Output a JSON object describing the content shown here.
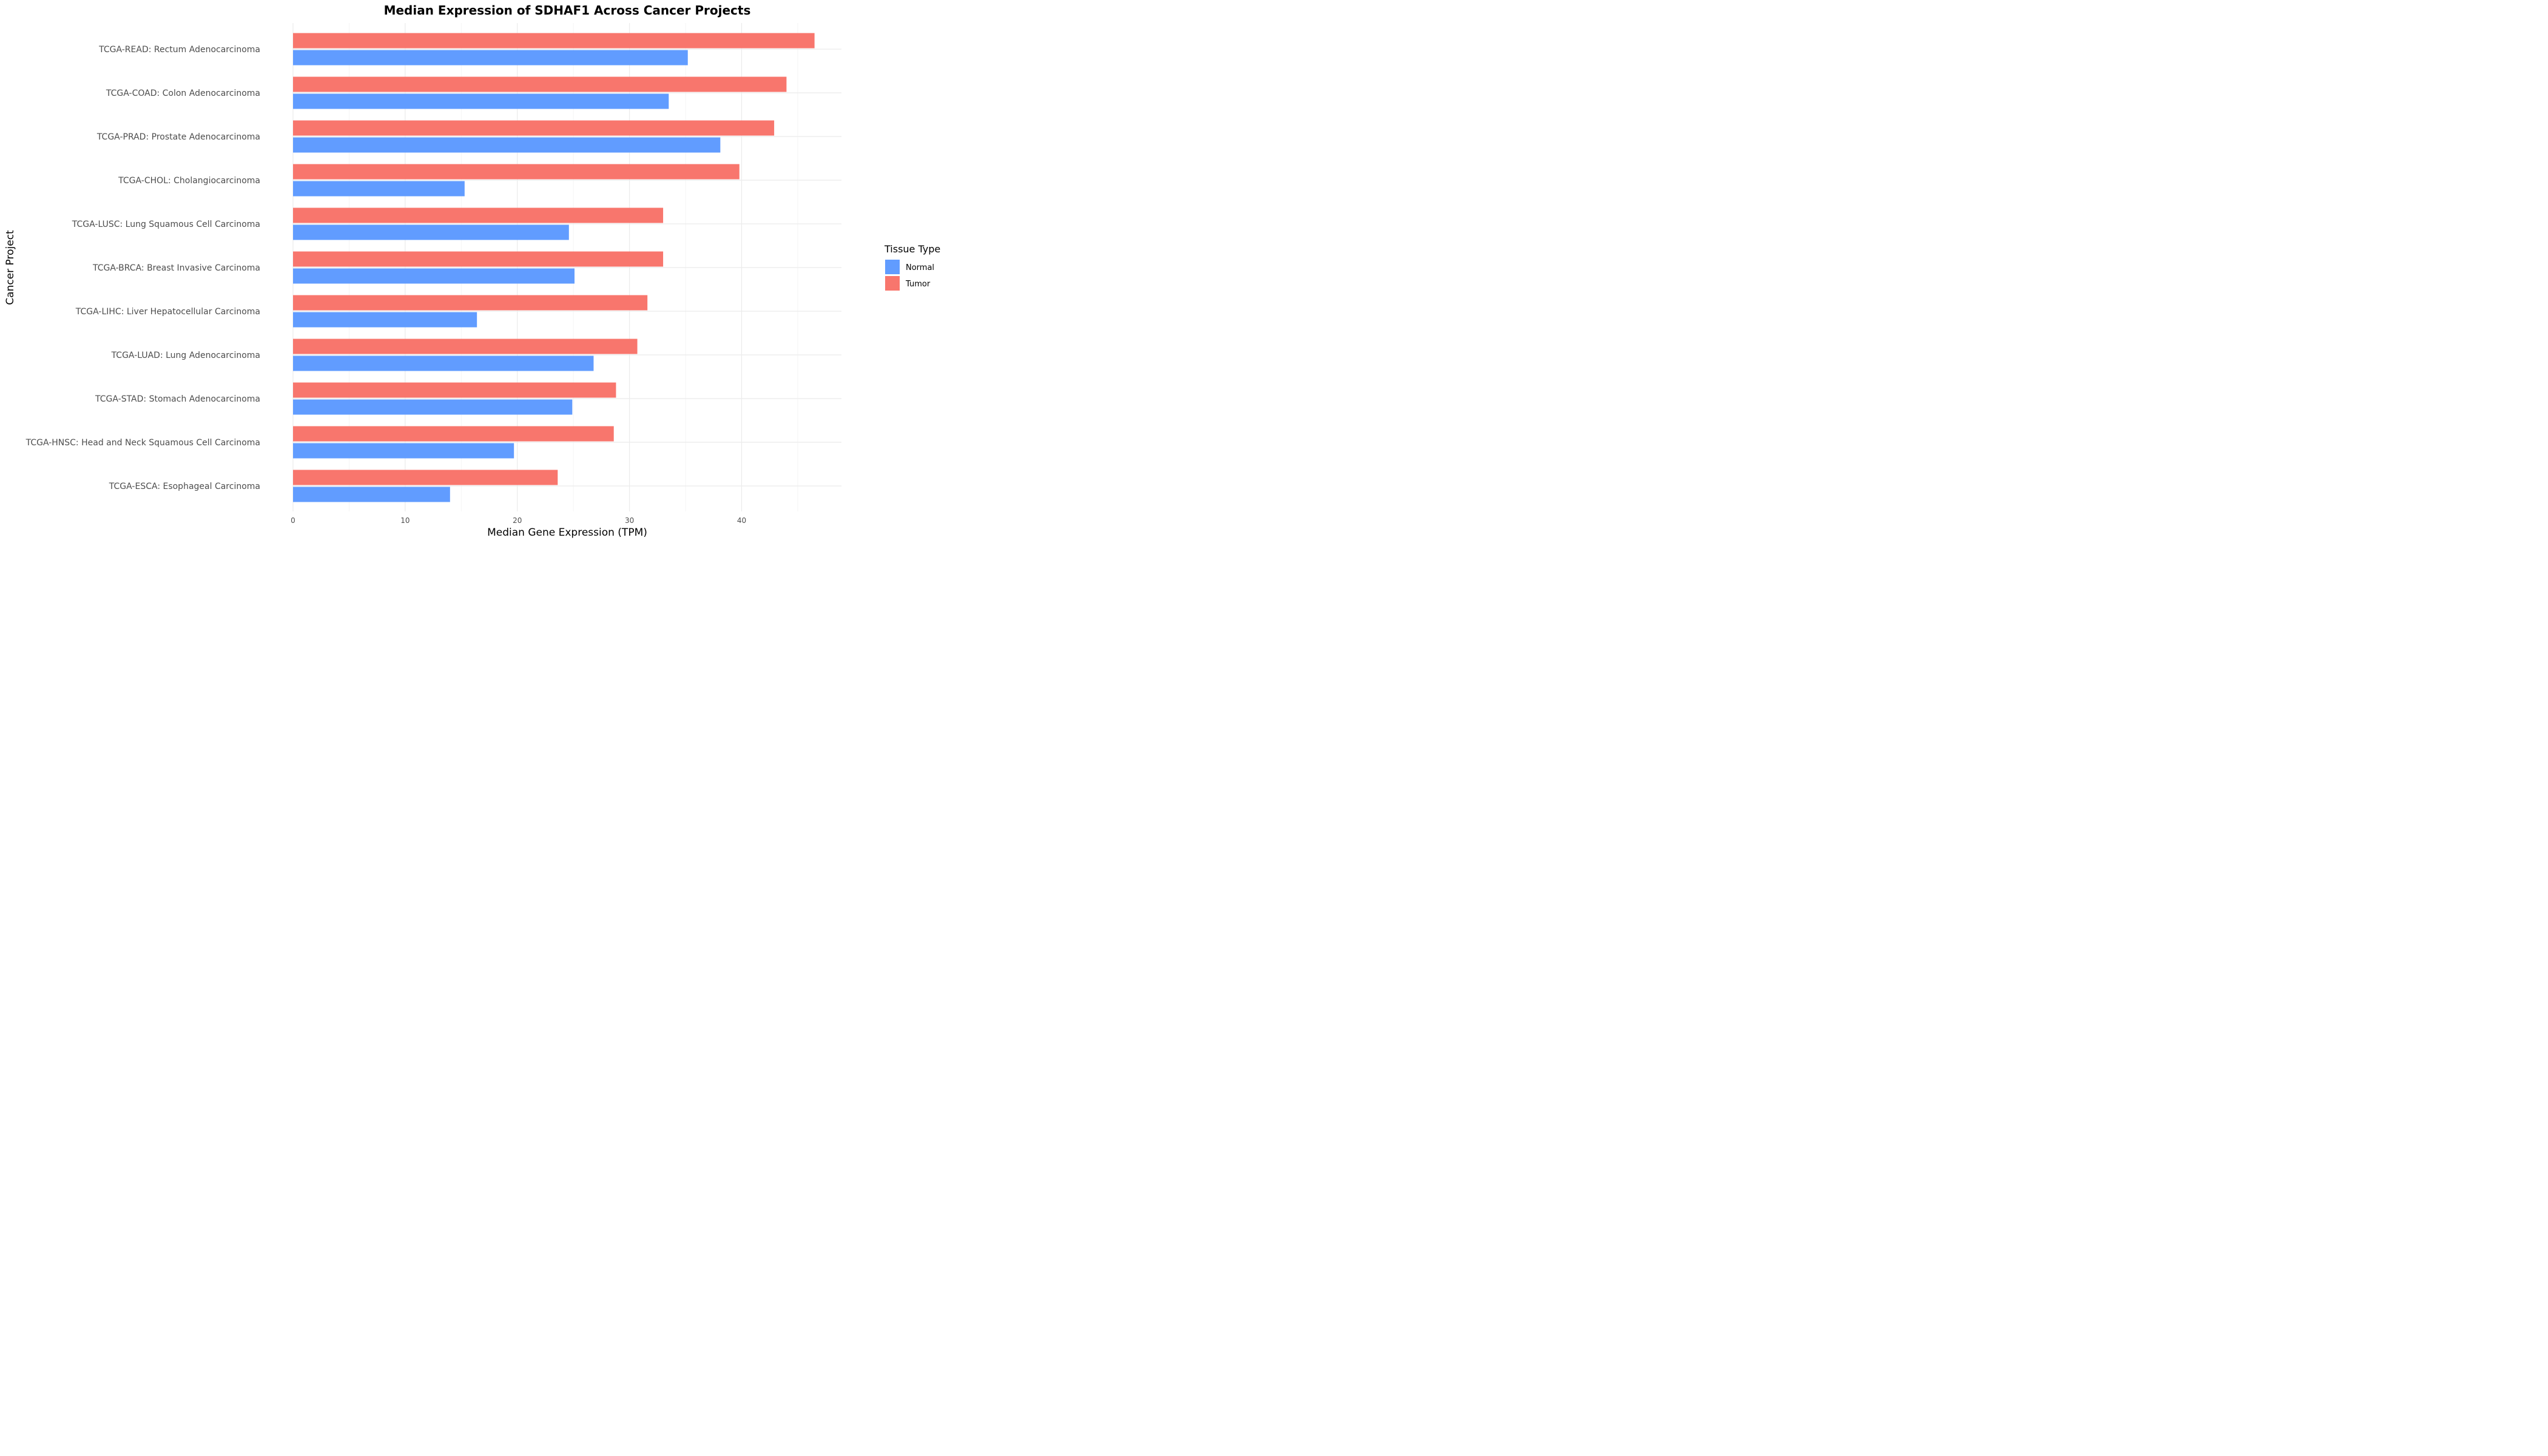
{
  "chart_data": {
    "type": "bar",
    "orientation": "horizontal",
    "title": "Median Expression of SDHAF1 Across Cancer Projects",
    "xlabel": "Median Gene Expression (TPM)",
    "ylabel": "Cancer Project",
    "xlim": [
      0,
      48.9
    ],
    "xticks": [
      0,
      10,
      20,
      30,
      40
    ],
    "grid": true,
    "legend": {
      "title": "Tissue Type",
      "position": "right",
      "entries": [
        "Normal",
        "Tumor"
      ]
    },
    "categories": [
      "TCGA-READ: Rectum Adenocarcinoma",
      "TCGA-COAD: Colon Adenocarcinoma",
      "TCGA-PRAD: Prostate Adenocarcinoma",
      "TCGA-CHOL: Cholangiocarcinoma",
      "TCGA-LUSC: Lung Squamous Cell Carcinoma",
      "TCGA-BRCA: Breast Invasive Carcinoma",
      "TCGA-LIHC: Liver Hepatocellular Carcinoma",
      "TCGA-LUAD: Lung Adenocarcinoma",
      "TCGA-STAD: Stomach Adenocarcinoma",
      "TCGA-HNSC: Head and Neck Squamous Cell Carcinoma",
      "TCGA-ESCA: Esophageal Carcinoma"
    ],
    "series": [
      {
        "name": "Tumor",
        "color": "#F8766D",
        "values": [
          46.5,
          44.0,
          42.9,
          39.8,
          33.0,
          33.0,
          31.6,
          30.7,
          28.8,
          28.6,
          23.6
        ]
      },
      {
        "name": "Normal",
        "color": "#619CFF",
        "values": [
          35.2,
          33.5,
          38.1,
          15.3,
          24.6,
          25.1,
          16.4,
          26.8,
          24.9,
          19.7,
          14.0
        ]
      }
    ]
  }
}
